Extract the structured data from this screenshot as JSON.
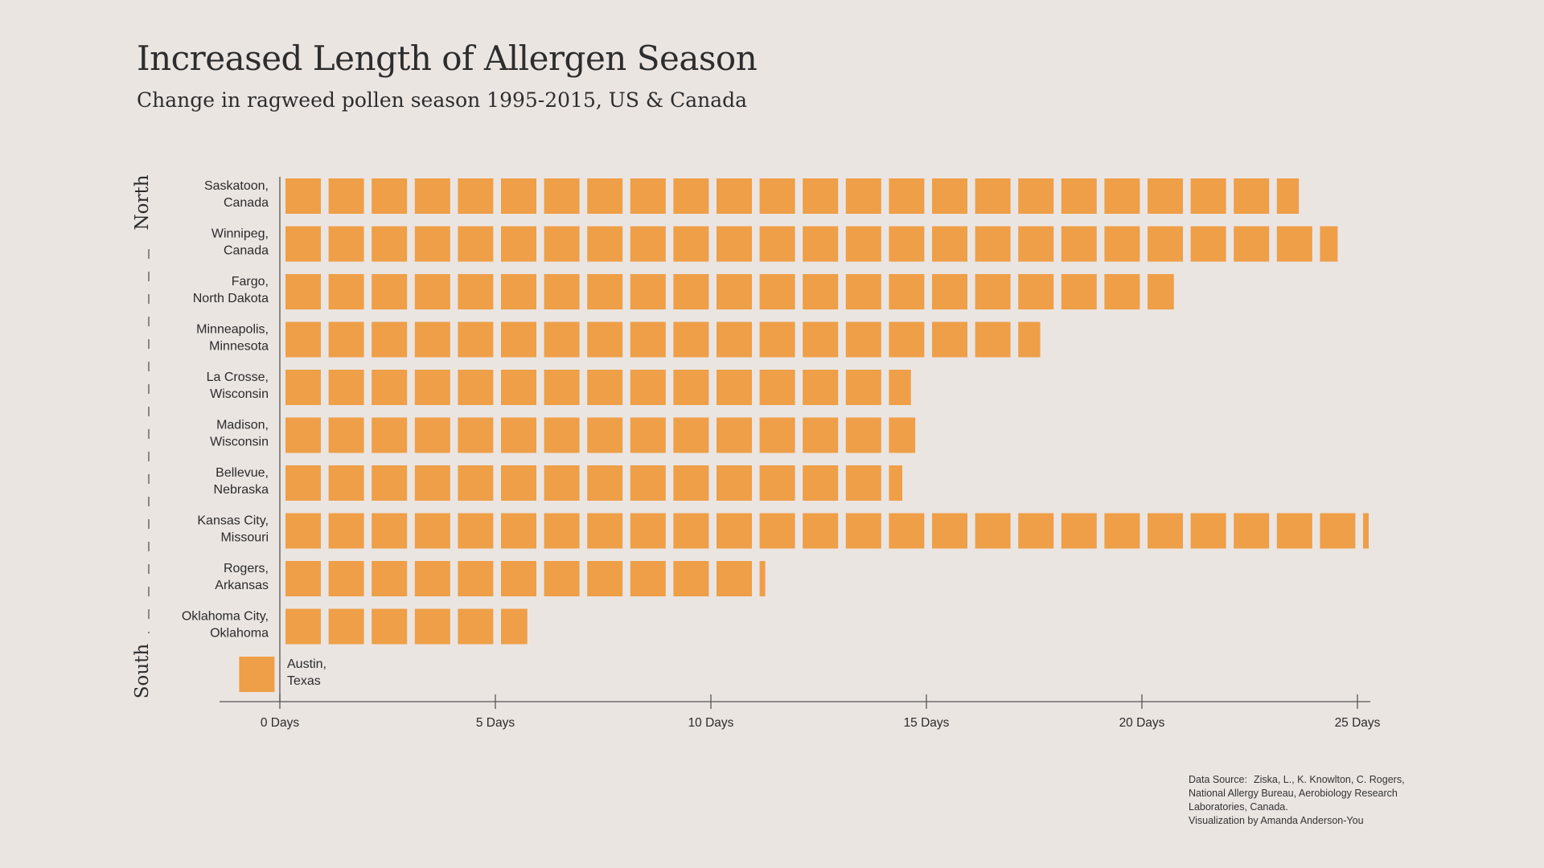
{
  "title": "Increased Length of Allergen Season",
  "subtitle": "Change in ragweed pollen season 1995-2015, US & Canada",
  "colors": {
    "bar": "#ee9f47",
    "background": "#ebe5e2",
    "axis": "#555555",
    "text": "#2b2b2b"
  },
  "axis_side": {
    "north": "North",
    "south": "South"
  },
  "source": {
    "label": "Data Source:",
    "text": "Ziska, L., K. Knowlton, C. Rogers, National Allergy Bureau, Aerobiology Research Laboratories, Canada.",
    "credit": "Visualization by Amanda Anderson-You"
  },
  "chart_data": {
    "type": "bar",
    "orientation": "horizontal",
    "unit_style": "one square per day",
    "categories": [
      [
        "Saskatoon,",
        "Canada"
      ],
      [
        "Winnipeg,",
        "Canada"
      ],
      [
        "Fargo,",
        "North Dakota"
      ],
      [
        "Minneapolis,",
        "Minnesota"
      ],
      [
        "La Crosse,",
        "Wisconsin"
      ],
      [
        "Madison,",
        "Wisconsin"
      ],
      [
        "Bellevue,",
        "Nebraska"
      ],
      [
        "Kansas City,",
        "Missouri"
      ],
      [
        "Rogers,",
        "Arkansas"
      ],
      [
        "Oklahoma City,",
        "Oklahoma"
      ],
      [
        "Austin,",
        "Texas"
      ]
    ],
    "values": [
      23.6,
      24.5,
      20.7,
      17.6,
      14.6,
      14.7,
      14.4,
      25.1,
      11.2,
      5.7,
      -1.0
    ],
    "xlim": [
      -1.4,
      25.3
    ],
    "xticks": [
      0,
      5,
      10,
      15,
      20,
      25
    ],
    "xtick_labels": [
      "0 Days",
      "5 Days",
      "10 Days",
      "15 Days",
      "20 Days",
      "25 Days"
    ]
  }
}
